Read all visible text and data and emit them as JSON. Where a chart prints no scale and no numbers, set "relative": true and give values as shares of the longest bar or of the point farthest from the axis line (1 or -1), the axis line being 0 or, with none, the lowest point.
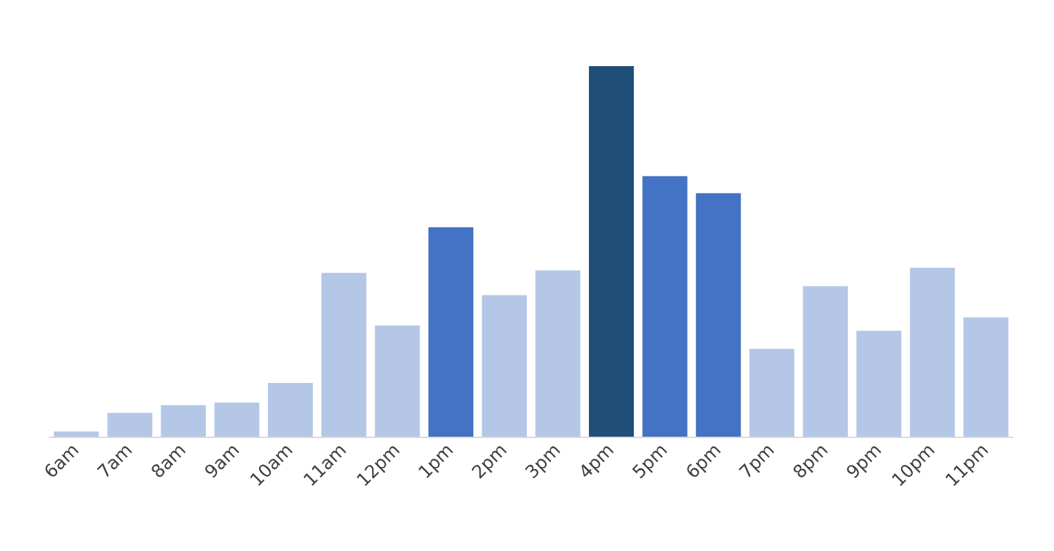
{
  "chart_data": {
    "type": "bar",
    "relative": true,
    "categories": [
      "6am",
      "7am",
      "8am",
      "9am",
      "10am",
      "11am",
      "12pm",
      "1pm",
      "2pm",
      "3pm",
      "4pm",
      "5pm",
      "6pm",
      "7pm",
      "8pm",
      "9pm",
      "10pm",
      "11pm"
    ],
    "values": [
      0.014,
      0.064,
      0.085,
      0.092,
      0.145,
      0.442,
      0.3,
      0.565,
      0.382,
      0.449,
      1,
      0.703,
      0.657,
      0.237,
      0.406,
      0.286,
      0.456,
      0.322
    ],
    "colors": [
      "#b4c7e7",
      "#b4c7e7",
      "#b4c7e7",
      "#b4c7e7",
      "#b4c7e7",
      "#b4c7e7",
      "#b4c7e7",
      "#4472c4",
      "#b4c7e7",
      "#b4c7e7",
      "#1f4e79",
      "#4472c4",
      "#4472c4",
      "#b4c7e7",
      "#b4c7e7",
      "#b4c7e7",
      "#b4c7e7",
      "#b4c7e7"
    ],
    "grid": false
  }
}
